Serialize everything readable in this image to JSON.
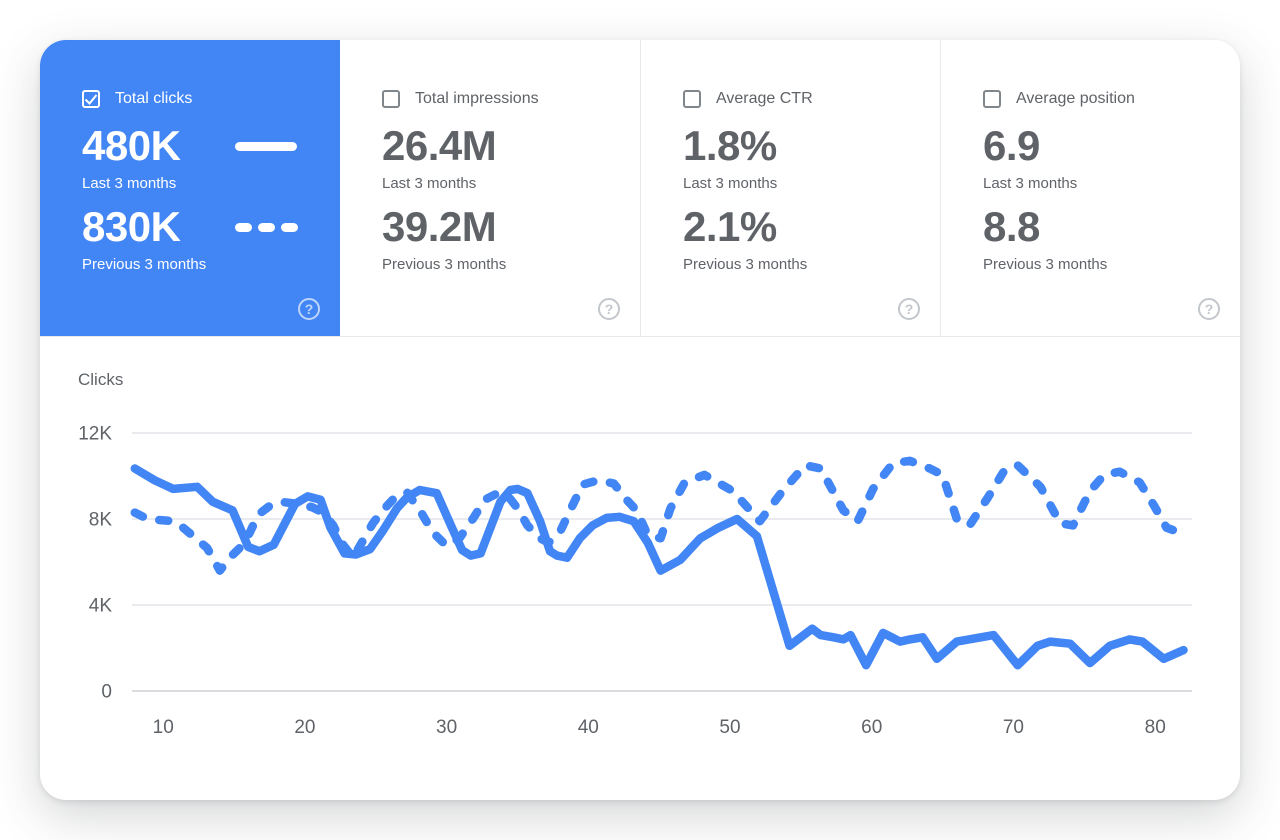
{
  "theme": {
    "accent_blue": "#4285f4",
    "text_gray": "#5f6368",
    "grid_color": "#e9ebee",
    "axis_zero_color": "#dadce0",
    "divider_color": "#e8eaed",
    "card_bg": "#ffffff"
  },
  "metrics": {
    "help_glyph": "?",
    "cards": [
      {
        "label": "Total clicks",
        "checked": true,
        "selected": true,
        "current": {
          "value": "480K",
          "caption": "Last 3 months",
          "legend": "solid-line"
        },
        "previous": {
          "value": "830K",
          "caption": "Previous 3 months",
          "legend": "dashed-line"
        }
      },
      {
        "label": "Total impressions",
        "checked": false,
        "selected": false,
        "current": {
          "value": "26.4M",
          "caption": "Last 3 months"
        },
        "previous": {
          "value": "39.2M",
          "caption": "Previous 3 months"
        }
      },
      {
        "label": "Average CTR",
        "checked": false,
        "selected": false,
        "current": {
          "value": "1.8%",
          "caption": "Last 3 months"
        },
        "previous": {
          "value": "2.1%",
          "caption": "Previous 3 months"
        }
      },
      {
        "label": "Average position",
        "checked": false,
        "selected": false,
        "current": {
          "value": "6.9",
          "caption": "Last 3 months"
        },
        "previous": {
          "value": "8.8",
          "caption": "Previous 3 months"
        }
      }
    ]
  },
  "chart_data": {
    "type": "line",
    "title": "Clicks",
    "ylabel": "Clicks",
    "xlabel": "",
    "grid": true,
    "legend": "in-metric-cards",
    "xlim": [
      7.8,
      82.6
    ],
    "ylim": [
      0,
      12000
    ],
    "x_ticks": [
      10,
      20,
      30,
      40,
      50,
      60,
      70,
      80
    ],
    "y_ticks": [
      {
        "value": 0,
        "label": "0"
      },
      {
        "value": 4000,
        "label": "4K"
      },
      {
        "value": 8000,
        "label": "8K"
      },
      {
        "value": 12000,
        "label": "12K"
      }
    ],
    "series": [
      {
        "name": "Last 3 months",
        "style": "solid",
        "color": "#4285f4",
        "points": [
          [
            8,
            10350
          ],
          [
            9.4,
            9800
          ],
          [
            10.7,
            9400
          ],
          [
            12.4,
            9500
          ],
          [
            13.5,
            8800
          ],
          [
            14.9,
            8400
          ],
          [
            16,
            6700
          ],
          [
            16.8,
            6500
          ],
          [
            17.8,
            6800
          ],
          [
            19.3,
            8700
          ],
          [
            20.2,
            9050
          ],
          [
            21.1,
            8900
          ],
          [
            21.8,
            7600
          ],
          [
            22.8,
            6400
          ],
          [
            23.6,
            6350
          ],
          [
            24.6,
            6600
          ],
          [
            25.5,
            7450
          ],
          [
            26.5,
            8500
          ],
          [
            27.2,
            9000
          ],
          [
            28.1,
            9350
          ],
          [
            29.3,
            9200
          ],
          [
            30.3,
            7700
          ],
          [
            31.1,
            6550
          ],
          [
            31.7,
            6300
          ],
          [
            32.4,
            6400
          ],
          [
            33.1,
            7600
          ],
          [
            33.8,
            8800
          ],
          [
            34.5,
            9350
          ],
          [
            35,
            9400
          ],
          [
            35.7,
            9200
          ],
          [
            36.6,
            7900
          ],
          [
            37.3,
            6500
          ],
          [
            37.8,
            6300
          ],
          [
            38.5,
            6200
          ],
          [
            39.4,
            7100
          ],
          [
            40.3,
            7700
          ],
          [
            41.3,
            8050
          ],
          [
            42.2,
            8100
          ],
          [
            43.2,
            7900
          ],
          [
            44.2,
            6900
          ],
          [
            45.1,
            5600
          ],
          [
            46.5,
            6100
          ],
          [
            47.9,
            7100
          ],
          [
            49.2,
            7600
          ],
          [
            50.5,
            8000
          ],
          [
            51.9,
            7200
          ],
          [
            54.2,
            2100
          ],
          [
            55.8,
            2900
          ],
          [
            56.4,
            2600
          ],
          [
            57.3,
            2500
          ],
          [
            58,
            2400
          ],
          [
            58.5,
            2600
          ],
          [
            59.6,
            1200
          ],
          [
            60.8,
            2700
          ],
          [
            62,
            2300
          ],
          [
            62.7,
            2400
          ],
          [
            63.6,
            2500
          ],
          [
            64.6,
            1500
          ],
          [
            66,
            2300
          ],
          [
            67.7,
            2500
          ],
          [
            68.6,
            2600
          ],
          [
            70.3,
            1200
          ],
          [
            71.7,
            2100
          ],
          [
            72.6,
            2300
          ],
          [
            74,
            2200
          ],
          [
            75.4,
            1300
          ],
          [
            76.8,
            2100
          ],
          [
            78.2,
            2400
          ],
          [
            79.1,
            2300
          ],
          [
            80.6,
            1500
          ],
          [
            82,
            1900
          ]
        ]
      },
      {
        "name": "Previous 3 months",
        "style": "dashed",
        "color": "#4285f4",
        "points": [
          [
            8,
            8300
          ],
          [
            8.9,
            8000
          ],
          [
            10.7,
            7900
          ],
          [
            11.4,
            7600
          ],
          [
            12.3,
            7100
          ],
          [
            13.1,
            6650
          ],
          [
            14,
            5600
          ],
          [
            14.7,
            6200
          ],
          [
            15.4,
            6650
          ],
          [
            16.1,
            7350
          ],
          [
            16.7,
            8200
          ],
          [
            17.6,
            8650
          ],
          [
            18.3,
            8800
          ],
          [
            19.5,
            8700
          ],
          [
            20.5,
            8550
          ],
          [
            21.3,
            8300
          ],
          [
            22,
            7700
          ],
          [
            22.7,
            6800
          ],
          [
            23.4,
            6200
          ],
          [
            24.1,
            7000
          ],
          [
            24.8,
            7800
          ],
          [
            25.5,
            8400
          ],
          [
            26.2,
            8900
          ],
          [
            27.2,
            9250
          ],
          [
            28.3,
            8200
          ],
          [
            29,
            7400
          ],
          [
            30,
            6750
          ],
          [
            30.9,
            7100
          ],
          [
            31.9,
            8050
          ],
          [
            32.7,
            8900
          ],
          [
            33.6,
            9200
          ],
          [
            34.3,
            9100
          ],
          [
            35,
            8500
          ],
          [
            35.7,
            7700
          ],
          [
            36.6,
            7100
          ],
          [
            37.2,
            6900
          ],
          [
            38,
            7400
          ],
          [
            38.9,
            8650
          ],
          [
            39.6,
            9600
          ],
          [
            40.7,
            9800
          ],
          [
            41.8,
            9650
          ],
          [
            42.7,
            8900
          ],
          [
            43.4,
            8400
          ],
          [
            44.2,
            7250
          ],
          [
            45.1,
            7100
          ],
          [
            45.8,
            8500
          ],
          [
            46.8,
            9700
          ],
          [
            48.2,
            10050
          ],
          [
            50.2,
            9300
          ],
          [
            52.1,
            7900
          ],
          [
            53.7,
            9300
          ],
          [
            55.3,
            10500
          ],
          [
            56.4,
            10350
          ],
          [
            58,
            8400
          ],
          [
            59,
            7900
          ],
          [
            60.1,
            9400
          ],
          [
            61.5,
            10600
          ],
          [
            62.7,
            10700
          ],
          [
            64.1,
            10350
          ],
          [
            65,
            10050
          ],
          [
            66,
            8000
          ],
          [
            66.9,
            7700
          ],
          [
            68.2,
            9000
          ],
          [
            69.4,
            10300
          ],
          [
            70.3,
            10500
          ],
          [
            71.9,
            9500
          ],
          [
            73.3,
            7800
          ],
          [
            74.2,
            7700
          ],
          [
            75.4,
            9300
          ],
          [
            76.4,
            10050
          ],
          [
            77.5,
            10200
          ],
          [
            78.9,
            9700
          ],
          [
            79.9,
            8650
          ],
          [
            80.8,
            7600
          ],
          [
            82,
            7300
          ]
        ]
      }
    ]
  }
}
